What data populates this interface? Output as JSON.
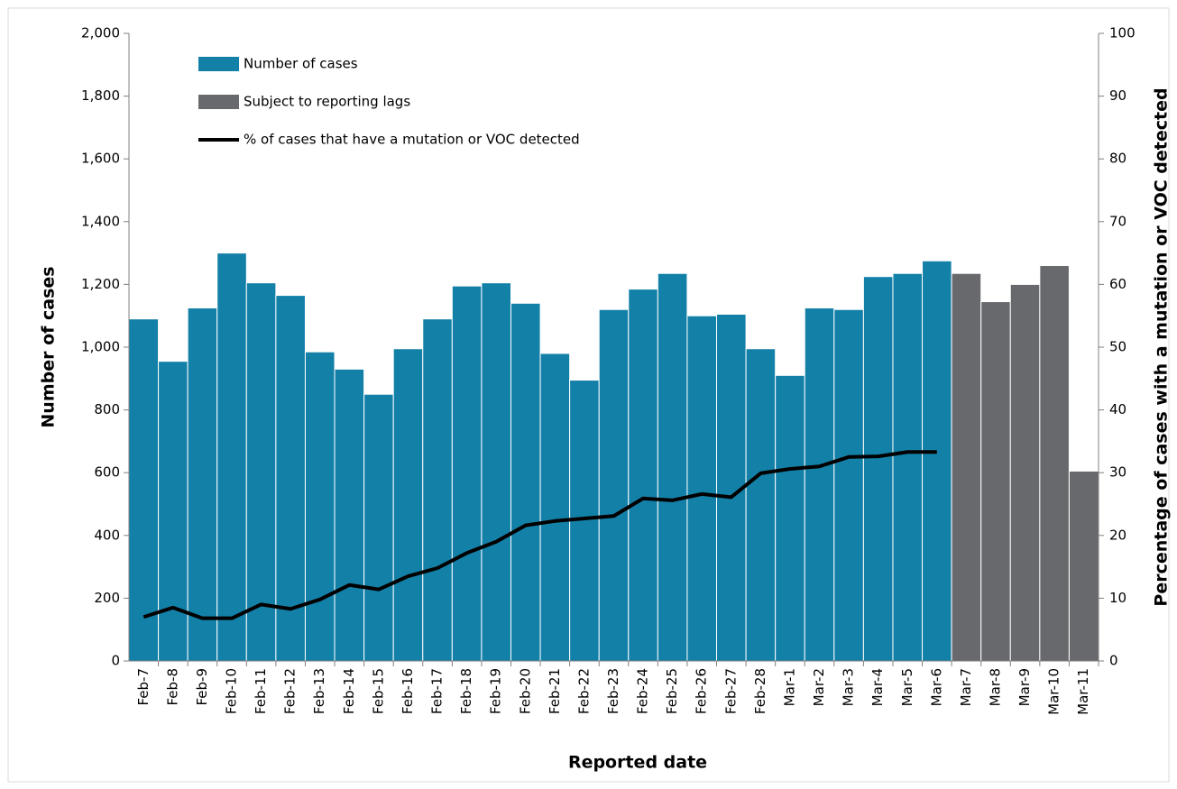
{
  "chart_data": {
    "type": "bar",
    "x_label": "Reported date",
    "y_label": "Number of cases",
    "y2_label": "Percentage of cases with a mutation or VOC detected",
    "categories": [
      "Feb-7",
      "Feb-8",
      "Feb-9",
      "Feb-10",
      "Feb-11",
      "Feb-12",
      "Feb-13",
      "Feb-14",
      "Feb-15",
      "Feb-16",
      "Feb-17",
      "Feb-18",
      "Feb-19",
      "Feb-20",
      "Feb-21",
      "Feb-22",
      "Feb-23",
      "Feb-24",
      "Feb-25",
      "Feb-26",
      "Feb-27",
      "Feb-28",
      "Mar-1",
      "Mar-2",
      "Mar-3",
      "Mar-4",
      "Mar-5",
      "Mar-6",
      "Mar-7",
      "Mar-8",
      "Mar-9",
      "Mar-10",
      "Mar-11"
    ],
    "series": [
      {
        "name": "Number of cases",
        "type": "bar",
        "color": "#1380a8",
        "values": [
          1090,
          955,
          1125,
          1300,
          1205,
          1165,
          985,
          930,
          850,
          995,
          1090,
          1195,
          1205,
          1140,
          980,
          895,
          1120,
          1185,
          1235,
          1100,
          1105,
          995,
          910,
          1125,
          1120,
          1225,
          1235,
          1275,
          null,
          null,
          null,
          null,
          null
        ]
      },
      {
        "name": "Subject to reporting lags",
        "type": "bar",
        "color": "#68696d",
        "values": [
          null,
          null,
          null,
          null,
          null,
          null,
          null,
          null,
          null,
          null,
          null,
          null,
          null,
          null,
          null,
          null,
          null,
          null,
          null,
          null,
          null,
          null,
          null,
          null,
          null,
          null,
          null,
          null,
          1235,
          1145,
          1200,
          1260,
          605
        ]
      },
      {
        "name": "% of cases that have a mutation or VOC detected",
        "type": "line",
        "axis": "y2",
        "color": "#000000",
        "values": [
          7,
          8.5,
          6.8,
          6.8,
          9,
          8.3,
          9.8,
          12.1,
          11.4,
          13.5,
          14.8,
          17.2,
          19,
          21.6,
          22.3,
          22.7,
          23.1,
          25.9,
          25.6,
          26.6,
          26.1,
          29.9,
          30.6,
          31,
          32.5,
          32.6,
          33.3,
          33.3,
          null,
          null,
          null,
          null,
          null
        ]
      }
    ],
    "ylim": [
      0,
      2000
    ],
    "yticks": [
      0,
      {
        "value": 200,
        "label": "200"
      },
      {
        "value": 400,
        "label": "400"
      },
      {
        "value": 600,
        "label": "600"
      },
      {
        "value": 800,
        "label": "800"
      },
      {
        "value": 1000,
        "label": "1,000"
      },
      {
        "value": 1200,
        "label": "1,200"
      },
      {
        "value": 1400,
        "label": "1,400"
      },
      {
        "value": 1600,
        "label": "1,600"
      },
      {
        "value": 1800,
        "label": "1,800"
      },
      {
        "value": 2000,
        "label": "2,000"
      }
    ],
    "y2lim": [
      0,
      100
    ],
    "y2ticks": [
      0,
      10,
      20,
      30,
      40,
      50,
      60,
      70,
      80,
      90,
      100
    ],
    "grid": false,
    "legend": "top-left"
  }
}
